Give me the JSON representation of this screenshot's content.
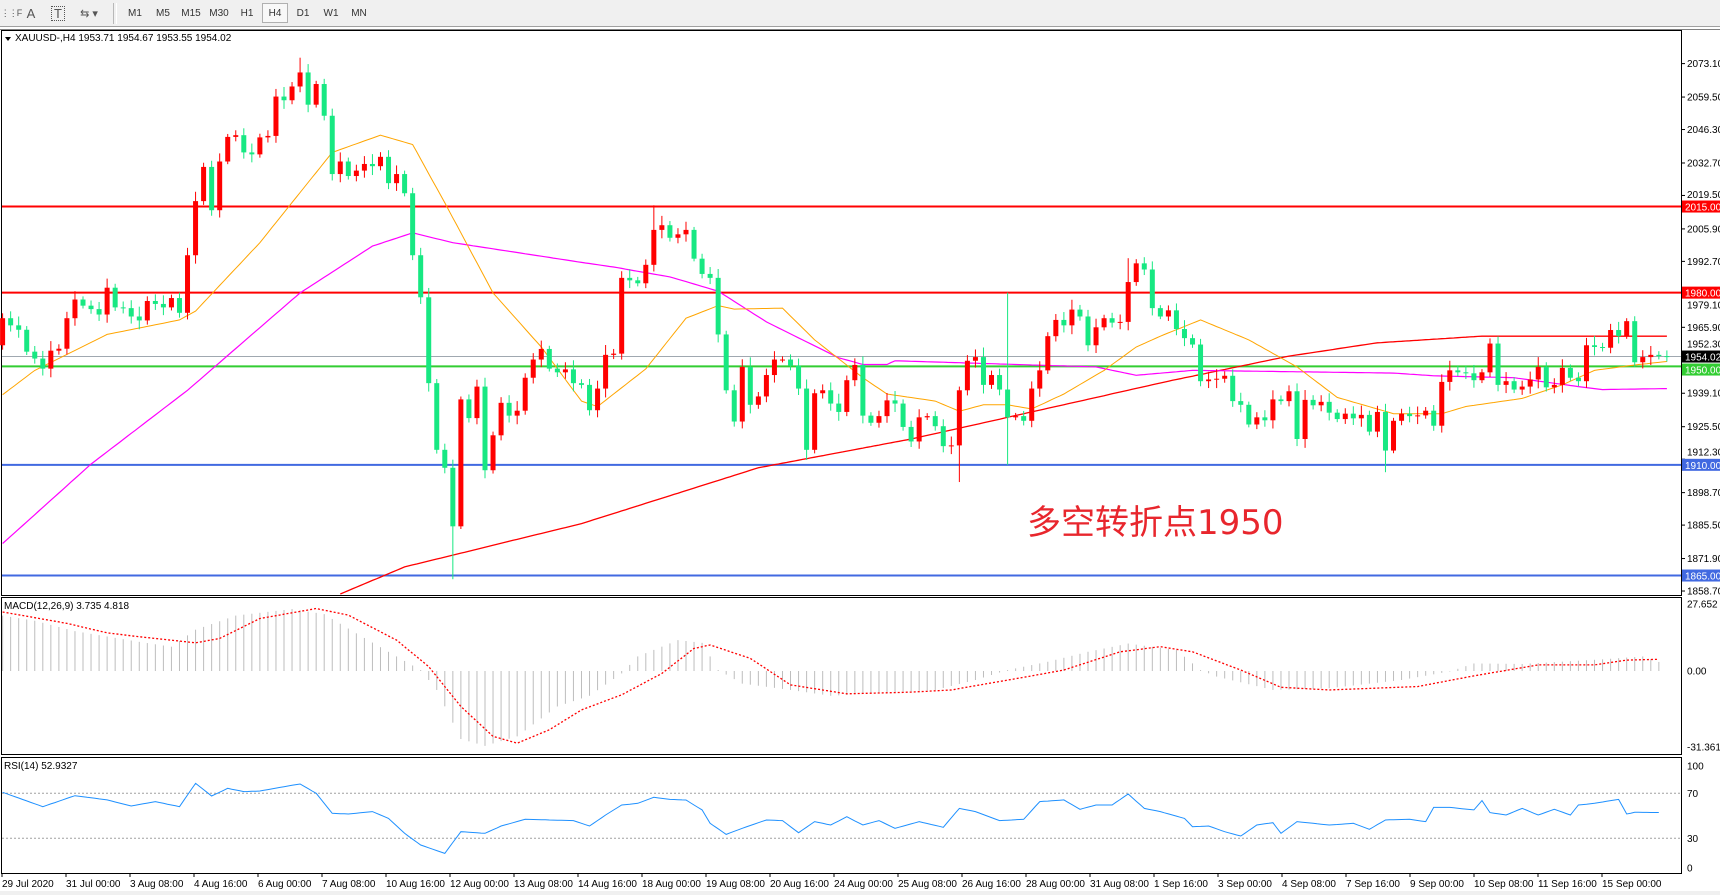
{
  "toolbar": {
    "icons": [
      "grid-font-icon",
      "text-a-icon",
      "text-box-icon",
      "arrows-icon"
    ],
    "text_a": "A",
    "text_t": "T",
    "timeframes": [
      "M1",
      "M5",
      "M15",
      "M30",
      "H1",
      "H4",
      "D1",
      "W1",
      "MN"
    ],
    "active_timeframe": "H4"
  },
  "chart": {
    "header": "XAUUSD-,H4  1953.71 1954.67 1953.55 1954.02",
    "annotation": "多空转折点1950",
    "colors": {
      "up": "#ff0000",
      "down": "#17e882",
      "ma_fast": "#ffa500",
      "ma_mid": "#ff00ff",
      "ma_slow": "#ff0000",
      "annotation": "#e8262d"
    },
    "price_axis": [
      "2073.10",
      "2059.50",
      "2046.30",
      "2032.70",
      "2019.50",
      "2005.90",
      "1992.70",
      "1979.10",
      "1965.90",
      "1952.30",
      "1939.10",
      "1925.50",
      "1912.30",
      "1898.70",
      "1885.50",
      "1871.90",
      "1858.70"
    ],
    "levels": [
      {
        "price": 2015.0,
        "label": "2015.00",
        "color": "#ff0000"
      },
      {
        "price": 1980.0,
        "label": "1980.00",
        "color": "#ff0000"
      },
      {
        "price": 1954.02,
        "label": "1954.02",
        "color": "#000000",
        "line": "#a0a8b0"
      },
      {
        "price": 1950.0,
        "label": "1950.00",
        "color": "#32cd32"
      },
      {
        "price": 1910.0,
        "label": "1910.00",
        "color": "#4169e1"
      },
      {
        "price": 1865.0,
        "label": "1865.00",
        "color": "#4169e1"
      }
    ],
    "first_open": 1958.6,
    "closes": [
      1969.6,
      1966.7,
      1964.9,
      1956,
      1953.2,
      1949.1,
      1956.4,
      1957.2,
      1969.6,
      1977.2,
      1974.7,
      1973.3,
      1971.1,
      1982,
      1974,
      1973.7,
      1970.3,
      1968.7,
      1976.6,
      1975.4,
      1974,
      1977.8,
      1971.8,
      1995.2,
      2017.2,
      2031.1,
      2013.5,
      2033.3,
      2043.3,
      2044,
      2037,
      2036.2,
      2043.1,
      2043.7,
      2059.7,
      2058.2,
      2063.8,
      2069.5,
      2056.4,
      2064.8,
      2051.9,
      2028.2,
      2033.3,
      2027.4,
      2029.6,
      2032.3,
      2031.4,
      2035.2,
      2024.5,
      2028.2,
      2020.4,
      1995.2,
      1978.1,
      1943.2,
      1916.1,
      1908.8,
      1885,
      1936.6,
      1929,
      1941.8,
      1907.8,
      1922,
      1935.2,
      1930,
      1932,
      1945.4,
      1952.8,
      1957.1,
      1949.1,
      1947.6,
      1948.8,
      1943.2,
      1942.5,
      1932.2,
      1941,
      1954.7,
      1955.2,
      1986,
      1985,
      1983.8,
      1991.3,
      2005.5,
      2007.4,
      2002.3,
      2003.7,
      2005.5,
      1993.8,
      1987.6,
      1986,
      1963,
      1940.3,
      1927.6,
      1949.8,
      1934.4,
      1937.8,
      1946.5,
      1952.8,
      1952.8,
      1950.3,
      1941,
      1916.1,
      1939.1,
      1940.3,
      1934.9,
      1931.5,
      1944.4,
      1950.6,
      1930,
      1927.1,
      1929.8,
      1936.2,
      1934.9,
      1925.4,
      1919.5,
      1929.3,
      1929.8,
      1925.7,
      1917.6,
      1917.9,
      1940.3,
      1952.3,
      1953.8,
      1942.5,
      1946.5,
      1940.6,
      1929.3,
      1929.8,
      1927.9,
      1941,
      1948.4,
      1962.3,
      1968.9,
      1966.7,
      1973.1,
      1970.3,
      1958.6,
      1965.9,
      1969.6,
      1967.8,
      1968.1,
      1984.3,
      1991.9,
      1989.4,
      1973.7,
      1970.3,
      1972.8,
      1965.2,
      1961.5,
      1958.9,
      1944,
      1944.7,
      1945,
      1946.2,
      1935.9,
      1934.4,
      1926.4,
      1929.3,
      1928.1,
      1936.6,
      1935.9,
      1939.9,
      1920.5,
      1936.4,
      1934.2,
      1935.6,
      1931.2,
      1928.6,
      1930.8,
      1928.9,
      1930.3,
      1923.5,
      1931.5,
      1915.8,
      1927.9,
      1930.8,
      1929.8,
      1930.1,
      1932,
      1925.9,
      1943.7,
      1948.4,
      1947.6,
      1947.2,
      1944.4,
      1947.6,
      1959.3,
      1942.5,
      1944,
      1940.6,
      1941.8,
      1944.7,
      1949.8,
      1941.5,
      1942.5,
      1949.4,
      1945.4,
      1944,
      1958.6,
      1957.9,
      1957.6,
      1964.8,
      1962.3,
      1968.4,
      1951.7,
      1953.8,
      1954.7,
      1954.2,
      1954.02
    ],
    "extremes": {
      "38": {
        "h": 2075.5
      },
      "57": {
        "l": 1863.5
      },
      "82": {
        "h": 2015.5
      },
      "101": {
        "l": 1912
      },
      "120": {
        "l": 1903
      },
      "126": {
        "h": 1980,
        "l": 1910
      },
      "173": {
        "l": 1907
      },
      "141": {
        "h": 1994
      }
    },
    "ma_fast": [
      [
        1,
        1938.5
      ],
      [
        5,
        1948.4
      ],
      [
        14,
        1963
      ],
      [
        23,
        1968.9
      ],
      [
        25,
        1972.5
      ],
      [
        33,
        2000.3
      ],
      [
        42,
        2037
      ],
      [
        48,
        2044
      ],
      [
        52,
        2040.2
      ],
      [
        56,
        2016.5
      ],
      [
        62,
        1979.9
      ],
      [
        68,
        1957.9
      ],
      [
        73,
        1935.9
      ],
      [
        75,
        1933.7
      ],
      [
        81,
        1949
      ],
      [
        86,
        1969.6
      ],
      [
        90,
        1974.7
      ],
      [
        92,
        1973.3
      ],
      [
        98,
        1973.7
      ],
      [
        102,
        1960.8
      ],
      [
        108,
        1945.4
      ],
      [
        111,
        1938.8
      ],
      [
        117,
        1935.9
      ],
      [
        120,
        1931.8
      ],
      [
        123,
        1934.4
      ],
      [
        126,
        1934.4
      ],
      [
        129,
        1932.7
      ],
      [
        133,
        1938.8
      ],
      [
        138,
        1948.4
      ],
      [
        142,
        1957.9
      ],
      [
        145,
        1962.3
      ],
      [
        150,
        1968.9
      ],
      [
        156,
        1960.8
      ],
      [
        162,
        1949.8
      ],
      [
        167,
        1937.4
      ],
      [
        174,
        1930.8
      ],
      [
        180,
        1930.8
      ],
      [
        183,
        1933.7
      ],
      [
        190,
        1937
      ],
      [
        195,
        1942.5
      ],
      [
        199,
        1948.4
      ],
      [
        204,
        1950.6
      ],
      [
        208,
        1952
      ]
    ],
    "ma_mid": [
      [
        1,
        1878
      ],
      [
        12,
        1910.3
      ],
      [
        24,
        1940.3
      ],
      [
        38,
        1979.9
      ],
      [
        47,
        1998.9
      ],
      [
        52,
        2004.3
      ],
      [
        57,
        2000.3
      ],
      [
        73,
        1992.3
      ],
      [
        77,
        1990.4
      ],
      [
        84,
        1986.4
      ],
      [
        90,
        1980.6
      ],
      [
        96,
        1968.1
      ],
      [
        105,
        1953.5
      ],
      [
        108,
        1950.8
      ],
      [
        111,
        1950.8
      ],
      [
        112,
        1952.3
      ],
      [
        127,
        1950.8
      ],
      [
        137,
        1949.8
      ],
      [
        142,
        1946.4
      ],
      [
        149,
        1948.4
      ],
      [
        174,
        1947.3
      ],
      [
        179,
        1946.2
      ],
      [
        189,
        1945.4
      ],
      [
        197,
        1941.8
      ],
      [
        200,
        1940.6
      ],
      [
        208,
        1941
      ]
    ],
    "ma_slow": [
      [
        43,
        1857.5
      ],
      [
        51,
        1868.5
      ],
      [
        73,
        1886.1
      ],
      [
        95,
        1908.8
      ],
      [
        114,
        1920.5
      ],
      [
        126,
        1929.3
      ],
      [
        146,
        1944
      ],
      [
        161,
        1954.2
      ],
      [
        172,
        1959.6
      ],
      [
        185,
        1962.3
      ],
      [
        208,
        1962.3
      ]
    ]
  },
  "macd": {
    "label": "MACD(12,26,9) 3.735 4.818",
    "axis": [
      "27.652",
      "0.00",
      "-31.361"
    ],
    "axis_values": [
      27.652,
      0,
      -31.361
    ],
    "main": [
      [
        1,
        22.8
      ],
      [
        5,
        20.7
      ],
      [
        10,
        16.4
      ],
      [
        18,
        12
      ],
      [
        22,
        10
      ],
      [
        25,
        17
      ],
      [
        30,
        22.8
      ],
      [
        37,
        25.5
      ],
      [
        41,
        23.4
      ],
      [
        45,
        15.5
      ],
      [
        50,
        6
      ],
      [
        53,
        0.4
      ],
      [
        55,
        -7.8
      ],
      [
        58,
        -28
      ],
      [
        61,
        -30.8
      ],
      [
        65,
        -26.9
      ],
      [
        70,
        -14.6
      ],
      [
        74,
        -10.2
      ],
      [
        78,
        -1
      ],
      [
        80,
        6
      ],
      [
        85,
        12.7
      ],
      [
        88,
        11.6
      ],
      [
        90,
        0.4
      ],
      [
        93,
        -5.2
      ],
      [
        99,
        -7.8
      ],
      [
        104,
        -10.2
      ],
      [
        117,
        -7.8
      ],
      [
        122,
        -3.7
      ],
      [
        126,
        0.4
      ],
      [
        131,
        3.8
      ],
      [
        136,
        7.9
      ],
      [
        141,
        11.3
      ],
      [
        147,
        8.6
      ],
      [
        150,
        0.4
      ],
      [
        152,
        -2.3
      ],
      [
        159,
        -7.8
      ],
      [
        166,
        -7.1
      ],
      [
        175,
        -3.7
      ],
      [
        181,
        -0.2
      ],
      [
        184,
        3.1
      ],
      [
        190,
        2.9
      ],
      [
        200,
        4.8
      ],
      [
        205,
        6
      ],
      [
        207,
        3.735
      ]
    ],
    "signal": [
      [
        1,
        24.3
      ],
      [
        9,
        19.6
      ],
      [
        14,
        15.7
      ],
      [
        18,
        14.1
      ],
      [
        25,
        11.6
      ],
      [
        28,
        13.4
      ],
      [
        33,
        21.6
      ],
      [
        40,
        25.7
      ],
      [
        44,
        23
      ],
      [
        50,
        12.7
      ],
      [
        54,
        1.8
      ],
      [
        58,
        -14.6
      ],
      [
        62,
        -26.9
      ],
      [
        65,
        -29.7
      ],
      [
        69,
        -24.2
      ],
      [
        73,
        -16
      ],
      [
        78,
        -9.8
      ],
      [
        83,
        -1
      ],
      [
        87,
        9.3
      ],
      [
        89,
        10.7
      ],
      [
        94,
        5.2
      ],
      [
        99,
        -5.7
      ],
      [
        106,
        -9.4
      ],
      [
        114,
        -8.7
      ],
      [
        119,
        -7.8
      ],
      [
        128,
        -2.6
      ],
      [
        133,
        0.4
      ],
      [
        140,
        7.9
      ],
      [
        145,
        10
      ],
      [
        149,
        7.9
      ],
      [
        155,
        0.4
      ],
      [
        160,
        -6.7
      ],
      [
        166,
        -7.8
      ],
      [
        177,
        -6.4
      ],
      [
        184,
        -2
      ],
      [
        192,
        2.5
      ],
      [
        199,
        2.5
      ],
      [
        203,
        4.5
      ],
      [
        207,
        4.818
      ]
    ]
  },
  "rsi": {
    "label": "RSI(14) 52.9327",
    "axis": [
      "100",
      "70",
      "30",
      "0"
    ],
    "axis_values": [
      100,
      70,
      30,
      0
    ],
    "levels": [
      70,
      30
    ],
    "values": [
      [
        1,
        70.9
      ],
      [
        6,
        58.1
      ],
      [
        10,
        67.9
      ],
      [
        14,
        64.1
      ],
      [
        17,
        58.7
      ],
      [
        20,
        62.6
      ],
      [
        23,
        58.1
      ],
      [
        25,
        78.9
      ],
      [
        27,
        67.6
      ],
      [
        29,
        74.4
      ],
      [
        31,
        71.5
      ],
      [
        33,
        72
      ],
      [
        36,
        75.9
      ],
      [
        38,
        78.3
      ],
      [
        40,
        70
      ],
      [
        42,
        52.2
      ],
      [
        44,
        51.6
      ],
      [
        47,
        53.7
      ],
      [
        49,
        47.7
      ],
      [
        51,
        34.4
      ],
      [
        53,
        24
      ],
      [
        56,
        16.6
      ],
      [
        58,
        35.9
      ],
      [
        61,
        34.4
      ],
      [
        63,
        40.9
      ],
      [
        66,
        46.9
      ],
      [
        69,
        46.3
      ],
      [
        72,
        45.7
      ],
      [
        74,
        40.9
      ],
      [
        76,
        50.7
      ],
      [
        78,
        59.6
      ],
      [
        80,
        61.1
      ],
      [
        82,
        66.4
      ],
      [
        84,
        64.6
      ],
      [
        86,
        64
      ],
      [
        88,
        55.2
      ],
      [
        89,
        43.3
      ],
      [
        91,
        33.5
      ],
      [
        93,
        38.9
      ],
      [
        96,
        46.3
      ],
      [
        98,
        45.7
      ],
      [
        100,
        35
      ],
      [
        102,
        44.8
      ],
      [
        104,
        41.8
      ],
      [
        106,
        49.2
      ],
      [
        108,
        41.8
      ],
      [
        110,
        45.7
      ],
      [
        112,
        38.9
      ],
      [
        115,
        44.8
      ],
      [
        118,
        39.8
      ],
      [
        120,
        56.6
      ],
      [
        122,
        53.7
      ],
      [
        125,
        45.7
      ],
      [
        128,
        46.9
      ],
      [
        130,
        62.6
      ],
      [
        133,
        64.1
      ],
      [
        135,
        55.8
      ],
      [
        137,
        59.6
      ],
      [
        139,
        59.6
      ],
      [
        141,
        69.4
      ],
      [
        143,
        56.6
      ],
      [
        145,
        53.7
      ],
      [
        148,
        47.7
      ],
      [
        149,
        40.3
      ],
      [
        151,
        40.9
      ],
      [
        153,
        35.9
      ],
      [
        155,
        32
      ],
      [
        157,
        41.8
      ],
      [
        159,
        43.9
      ],
      [
        160,
        34.4
      ],
      [
        162,
        44.8
      ],
      [
        164,
        43.3
      ],
      [
        166,
        41.8
      ],
      [
        169,
        43.3
      ],
      [
        171,
        38
      ],
      [
        173,
        46.3
      ],
      [
        176,
        46.9
      ],
      [
        178,
        44.8
      ],
      [
        179,
        57.5
      ],
      [
        181,
        57.5
      ],
      [
        184,
        55.2
      ],
      [
        185,
        63.5
      ],
      [
        186,
        52.8
      ],
      [
        188,
        50.7
      ],
      [
        190,
        56.6
      ],
      [
        192,
        50.7
      ],
      [
        194,
        55.8
      ],
      [
        196,
        50.7
      ],
      [
        197,
        59.6
      ],
      [
        199,
        61.1
      ],
      [
        201,
        63.5
      ],
      [
        202,
        64.6
      ],
      [
        203,
        51.6
      ],
      [
        204,
        53.1
      ],
      [
        207,
        52.9
      ]
    ]
  },
  "time_axis": [
    "29 Jul 2020",
    "31 Jul 00:00",
    "3 Aug 08:00",
    "4 Aug 16:00",
    "6 Aug 00:00",
    "7 Aug 08:00",
    "10 Aug 16:00",
    "12 Aug 00:00",
    "13 Aug 08:00",
    "14 Aug 16:00",
    "18 Aug 00:00",
    "19 Aug 08:00",
    "20 Aug 16:00",
    "24 Aug 00:00",
    "25 Aug 08:00",
    "26 Aug 16:00",
    "28 Aug 00:00",
    "31 Aug 08:00",
    "1 Sep 16:00",
    "3 Sep 00:00",
    "4 Sep 08:00",
    "7 Sep 16:00",
    "9 Sep 00:00",
    "10 Sep 08:00",
    "11 Sep 16:00",
    "15 Sep 00:00"
  ]
}
